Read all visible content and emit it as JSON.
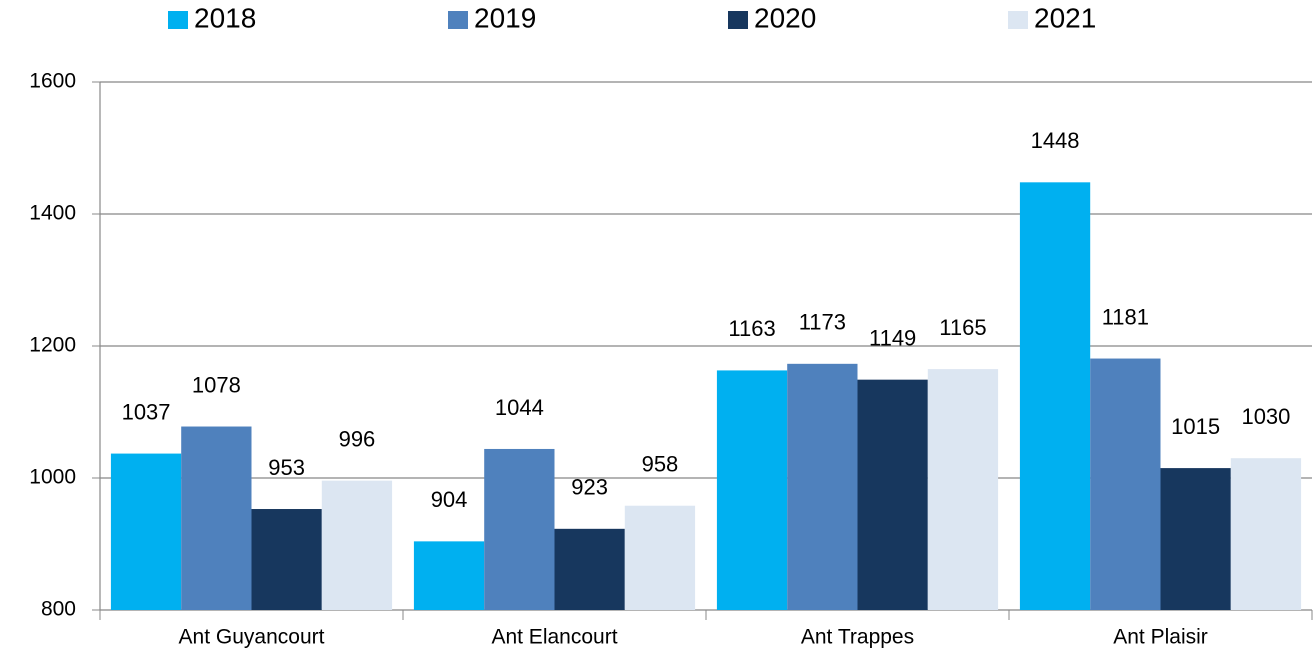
{
  "chart_data": {
    "type": "bar",
    "categories": [
      "Ant Guyancourt",
      "Ant Elancourt",
      "Ant Trappes",
      "Ant Plaisir"
    ],
    "series": [
      {
        "name": "2018",
        "color": "#00b0f0",
        "values": [
          1037,
          904,
          1163,
          1448
        ]
      },
      {
        "name": "2019",
        "color": "#4f81bd",
        "values": [
          1078,
          1044,
          1173,
          1181
        ]
      },
      {
        "name": "2020",
        "color": "#17375e",
        "values": [
          953,
          923,
          1149,
          1015
        ]
      },
      {
        "name": "2021",
        "color": "#dce6f2",
        "values": [
          996,
          958,
          1165,
          1030
        ]
      }
    ],
    "ylim": [
      800,
      1600
    ],
    "yticks": [
      800,
      1000,
      1200,
      1400,
      1600
    ],
    "grid": true,
    "legend": "top"
  }
}
